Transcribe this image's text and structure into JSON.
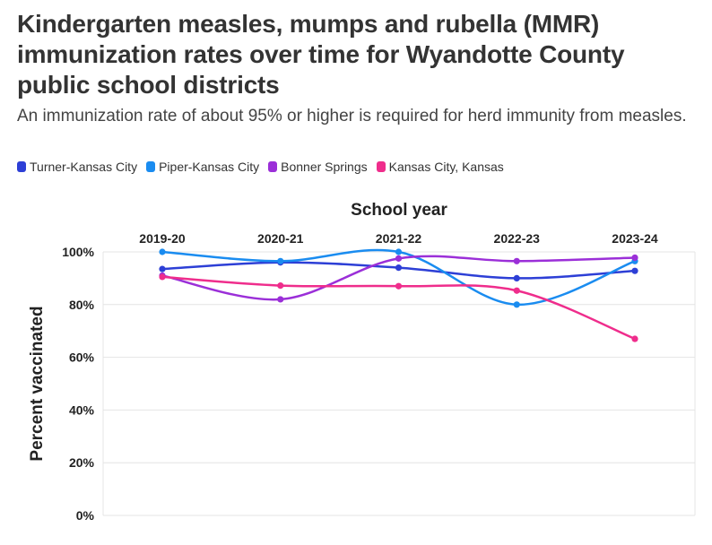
{
  "header": {
    "title": "Kindergarten measles, mumps and rubella (MMR) immunization rates over time for Wyandotte County public school districts",
    "subtitle": "An immunization rate of about 95% or higher is required for herd immunity from measles."
  },
  "chart_data": {
    "type": "line",
    "categories": [
      "2019-20",
      "2020-21",
      "2021-22",
      "2022-23",
      "2023-24"
    ],
    "xlabel": "School year",
    "ylabel": "Percent vaccinated",
    "ylim": [
      0,
      100
    ],
    "yticks": [
      0,
      20,
      40,
      60,
      80,
      100
    ],
    "ytick_labels": [
      "0%",
      "20%",
      "40%",
      "60%",
      "80%",
      "100%"
    ],
    "grid": true,
    "legend_position": "top-left",
    "series": [
      {
        "name": "Turner-Kansas City",
        "color": "#2d3fd6",
        "values": [
          93.5,
          96,
          94,
          90,
          92.8
        ]
      },
      {
        "name": "Piper-Kansas City",
        "color": "#1a8cf0",
        "values": [
          100,
          96.5,
          100,
          80,
          96.5
        ]
      },
      {
        "name": "Bonner Springs",
        "color": "#9b2fd8",
        "values": [
          91,
          82,
          97.5,
          96.5,
          97.8
        ]
      },
      {
        "name": "Kansas City, Kansas",
        "color": "#ef2d8c",
        "values": [
          90.5,
          87.2,
          87,
          85.3,
          67
        ]
      }
    ]
  }
}
